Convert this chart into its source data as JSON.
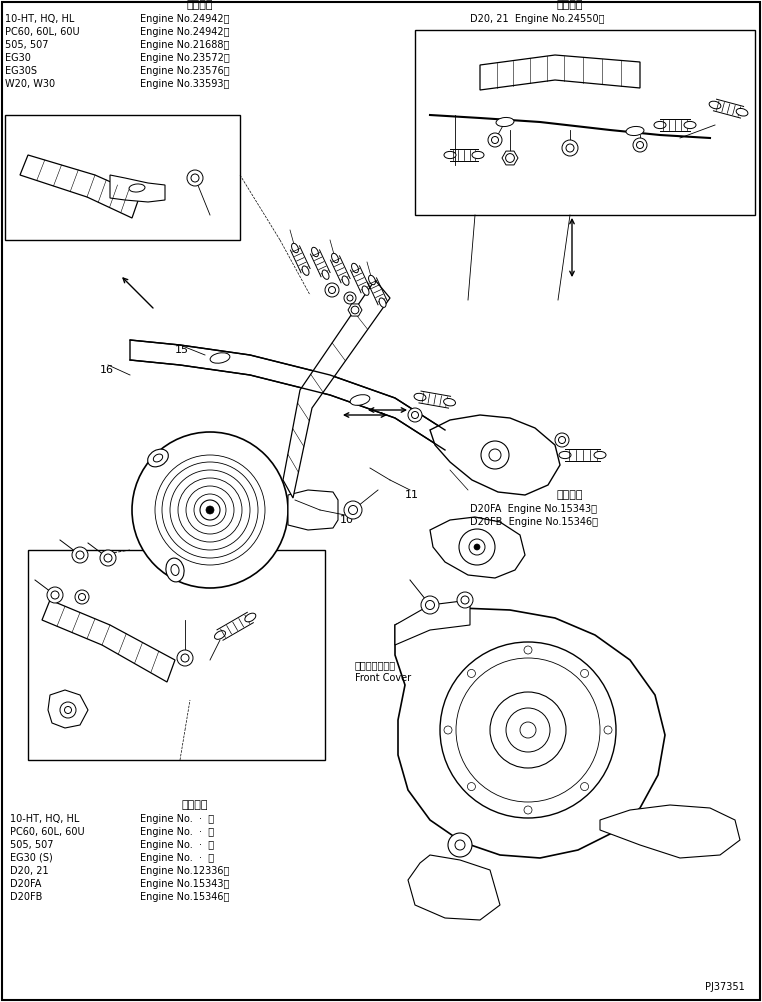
{
  "bg_color": "#ffffff",
  "line_color": "#000000",
  "page_id": "PJ37351",
  "top_left_header": "適用号機",
  "top_left_lines": [
    [
      "10-HT, HQ, HL",
      "Engine No.24942～"
    ],
    [
      "PC60, 60L, 60U",
      "Engine No.24942～"
    ],
    [
      "505, 507",
      "Engine No.21688～"
    ],
    [
      "EG30",
      "Engine No.23572～"
    ],
    [
      "EG30S",
      "Engine No.23576～"
    ],
    [
      "W20, W30",
      "Engine No.33593～"
    ]
  ],
  "top_right_header": "適用号機",
  "top_right_line": "D20, 21  Engine No.24550～",
  "mid_right_header": "適用号機",
  "mid_right_lines": [
    "D20FA  Engine No.15343～",
    "D20FB  Engine No.15346～"
  ],
  "bottom_header": "適用号機",
  "bottom_lines": [
    [
      "10-HT, HQ, HL",
      "Engine No.  ·  ～"
    ],
    [
      "PC60, 60L, 60U",
      "Engine No.  ·  ～"
    ],
    [
      "505, 507",
      "Engine No.  ·  ～"
    ],
    [
      "EG30 (S)",
      "Engine No.  ·  ～"
    ],
    [
      "D20, 21",
      "Engine No.12336～"
    ],
    [
      "D20FA",
      "Engine No.15343～"
    ],
    [
      "D20FB",
      "Engine No.15346～"
    ]
  ],
  "front_cover_jp": "フロントカバー",
  "front_cover_en": "Front Cover"
}
